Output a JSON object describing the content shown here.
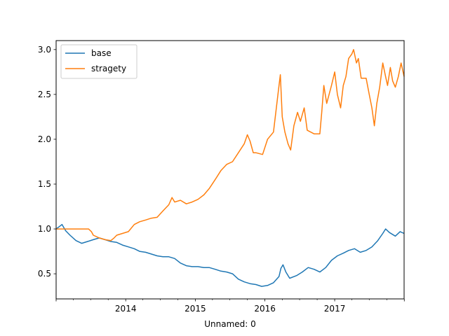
{
  "chart_data": {
    "type": "line",
    "title": "",
    "xlabel": "Unnamed: 0",
    "ylabel": "",
    "x_tick_labels": [
      "2014",
      "2015",
      "2016",
      "2017"
    ],
    "y_ticks": [
      "0.5",
      "1.0",
      "1.5",
      "2.0",
      "2.5",
      "3.0"
    ],
    "xlim": [
      "2013-01-01",
      "2017-12-31"
    ],
    "ylim": [
      0.22,
      3.1
    ],
    "grid": false,
    "legend_position": "upper-left",
    "series": [
      {
        "name": "base",
        "color": "#1f77b4",
        "points": [
          [
            "2013-01-01",
            1.0
          ],
          [
            "2013-01-20",
            1.03
          ],
          [
            "2013-02-01",
            1.05
          ],
          [
            "2013-02-20",
            0.98
          ],
          [
            "2013-03-15",
            0.93
          ],
          [
            "2013-04-15",
            0.87
          ],
          [
            "2013-05-15",
            0.84
          ],
          [
            "2013-06-15",
            0.86
          ],
          [
            "2013-07-15",
            0.88
          ],
          [
            "2013-08-15",
            0.9
          ],
          [
            "2013-09-15",
            0.88
          ],
          [
            "2013-10-15",
            0.86
          ],
          [
            "2013-11-15",
            0.85
          ],
          [
            "2013-12-15",
            0.82
          ],
          [
            "2014-01-15",
            0.8
          ],
          [
            "2014-02-15",
            0.78
          ],
          [
            "2014-03-15",
            0.75
          ],
          [
            "2014-04-15",
            0.74
          ],
          [
            "2014-05-15",
            0.72
          ],
          [
            "2014-06-15",
            0.7
          ],
          [
            "2014-07-15",
            0.69
          ],
          [
            "2014-08-15",
            0.69
          ],
          [
            "2014-09-15",
            0.67
          ],
          [
            "2014-10-15",
            0.62
          ],
          [
            "2014-11-15",
            0.59
          ],
          [
            "2014-12-15",
            0.58
          ],
          [
            "2015-01-15",
            0.58
          ],
          [
            "2015-02-15",
            0.57
          ],
          [
            "2015-03-15",
            0.57
          ],
          [
            "2015-04-15",
            0.55
          ],
          [
            "2015-05-15",
            0.53
          ],
          [
            "2015-06-15",
            0.52
          ],
          [
            "2015-07-15",
            0.5
          ],
          [
            "2015-08-15",
            0.44
          ],
          [
            "2015-09-15",
            0.41
          ],
          [
            "2015-10-15",
            0.39
          ],
          [
            "2015-11-15",
            0.38
          ],
          [
            "2015-12-15",
            0.36
          ],
          [
            "2016-01-15",
            0.37
          ],
          [
            "2016-02-15",
            0.4
          ],
          [
            "2016-03-15",
            0.47
          ],
          [
            "2016-03-25",
            0.56
          ],
          [
            "2016-04-05",
            0.6
          ],
          [
            "2016-04-20",
            0.52
          ],
          [
            "2016-05-10",
            0.45
          ],
          [
            "2016-06-15",
            0.48
          ],
          [
            "2016-07-15",
            0.52
          ],
          [
            "2016-08-15",
            0.57
          ],
          [
            "2016-09-15",
            0.55
          ],
          [
            "2016-10-15",
            0.52
          ],
          [
            "2016-11-15",
            0.57
          ],
          [
            "2016-12-15",
            0.65
          ],
          [
            "2017-01-15",
            0.7
          ],
          [
            "2017-02-15",
            0.73
          ],
          [
            "2017-03-15",
            0.76
          ],
          [
            "2017-04-15",
            0.78
          ],
          [
            "2017-05-15",
            0.74
          ],
          [
            "2017-06-15",
            0.76
          ],
          [
            "2017-07-15",
            0.8
          ],
          [
            "2017-08-15",
            0.87
          ],
          [
            "2017-09-10",
            0.95
          ],
          [
            "2017-09-25",
            1.0
          ],
          [
            "2017-10-15",
            0.96
          ],
          [
            "2017-11-15",
            0.92
          ],
          [
            "2017-12-10",
            0.97
          ],
          [
            "2017-12-31",
            0.95
          ]
        ]
      },
      {
        "name": "stragety",
        "color": "#ff7f0e",
        "points": [
          [
            "2013-01-01",
            1.0
          ],
          [
            "2013-06-20",
            1.0
          ],
          [
            "2013-07-05",
            0.97
          ],
          [
            "2013-07-15",
            0.93
          ],
          [
            "2013-08-15",
            0.9
          ],
          [
            "2013-09-15",
            0.88
          ],
          [
            "2013-10-15",
            0.87
          ],
          [
            "2013-11-01",
            0.9
          ],
          [
            "2013-11-15",
            0.93
          ],
          [
            "2014-01-15",
            0.97
          ],
          [
            "2014-02-15",
            1.05
          ],
          [
            "2014-03-15",
            1.08
          ],
          [
            "2014-04-15",
            1.1
          ],
          [
            "2014-05-15",
            1.12
          ],
          [
            "2014-06-15",
            1.13
          ],
          [
            "2014-07-15",
            1.2
          ],
          [
            "2014-08-15",
            1.27
          ],
          [
            "2014-09-01",
            1.35
          ],
          [
            "2014-09-15",
            1.3
          ],
          [
            "2014-10-15",
            1.32
          ],
          [
            "2014-11-15",
            1.28
          ],
          [
            "2014-12-15",
            1.3
          ],
          [
            "2015-01-15",
            1.33
          ],
          [
            "2015-02-15",
            1.38
          ],
          [
            "2015-03-15",
            1.45
          ],
          [
            "2015-04-15",
            1.55
          ],
          [
            "2015-05-15",
            1.65
          ],
          [
            "2015-06-15",
            1.72
          ],
          [
            "2015-07-15",
            1.75
          ],
          [
            "2015-08-15",
            1.85
          ],
          [
            "2015-09-15",
            1.95
          ],
          [
            "2015-10-01",
            2.05
          ],
          [
            "2015-10-15",
            1.98
          ],
          [
            "2015-11-01",
            1.85
          ],
          [
            "2015-11-15",
            1.85
          ],
          [
            "2015-12-20",
            1.83
          ],
          [
            "2016-01-15",
            2.0
          ],
          [
            "2016-02-15",
            2.08
          ],
          [
            "2016-03-01",
            2.35
          ],
          [
            "2016-03-15",
            2.6
          ],
          [
            "2016-03-22",
            2.72
          ],
          [
            "2016-04-01",
            2.25
          ],
          [
            "2016-04-15",
            2.08
          ],
          [
            "2016-05-01",
            1.95
          ],
          [
            "2016-05-15",
            1.88
          ],
          [
            "2016-06-01",
            2.15
          ],
          [
            "2016-06-20",
            2.3
          ],
          [
            "2016-07-05",
            2.2
          ],
          [
            "2016-07-25",
            2.35
          ],
          [
            "2016-08-10",
            2.1
          ],
          [
            "2016-09-15",
            2.06
          ],
          [
            "2016-10-15",
            2.06
          ],
          [
            "2016-10-25",
            2.3
          ],
          [
            "2016-11-05",
            2.6
          ],
          [
            "2016-11-20",
            2.4
          ],
          [
            "2016-12-15",
            2.6
          ],
          [
            "2017-01-01",
            2.75
          ],
          [
            "2017-01-15",
            2.5
          ],
          [
            "2017-02-01",
            2.35
          ],
          [
            "2017-02-15",
            2.6
          ],
          [
            "2017-03-01",
            2.7
          ],
          [
            "2017-03-15",
            2.9
          ],
          [
            "2017-04-01",
            2.95
          ],
          [
            "2017-04-10",
            3.0
          ],
          [
            "2017-04-25",
            2.85
          ],
          [
            "2017-05-05",
            2.9
          ],
          [
            "2017-05-20",
            2.68
          ],
          [
            "2017-06-15",
            2.68
          ],
          [
            "2017-07-01",
            2.5
          ],
          [
            "2017-07-15",
            2.35
          ],
          [
            "2017-07-28",
            2.15
          ],
          [
            "2017-08-10",
            2.4
          ],
          [
            "2017-08-25",
            2.58
          ],
          [
            "2017-09-10",
            2.85
          ],
          [
            "2017-09-25",
            2.7
          ],
          [
            "2017-10-05",
            2.6
          ],
          [
            "2017-10-20",
            2.8
          ],
          [
            "2017-11-01",
            2.65
          ],
          [
            "2017-11-15",
            2.58
          ],
          [
            "2017-12-01",
            2.7
          ],
          [
            "2017-12-15",
            2.85
          ],
          [
            "2017-12-31",
            2.7
          ]
        ]
      }
    ]
  }
}
